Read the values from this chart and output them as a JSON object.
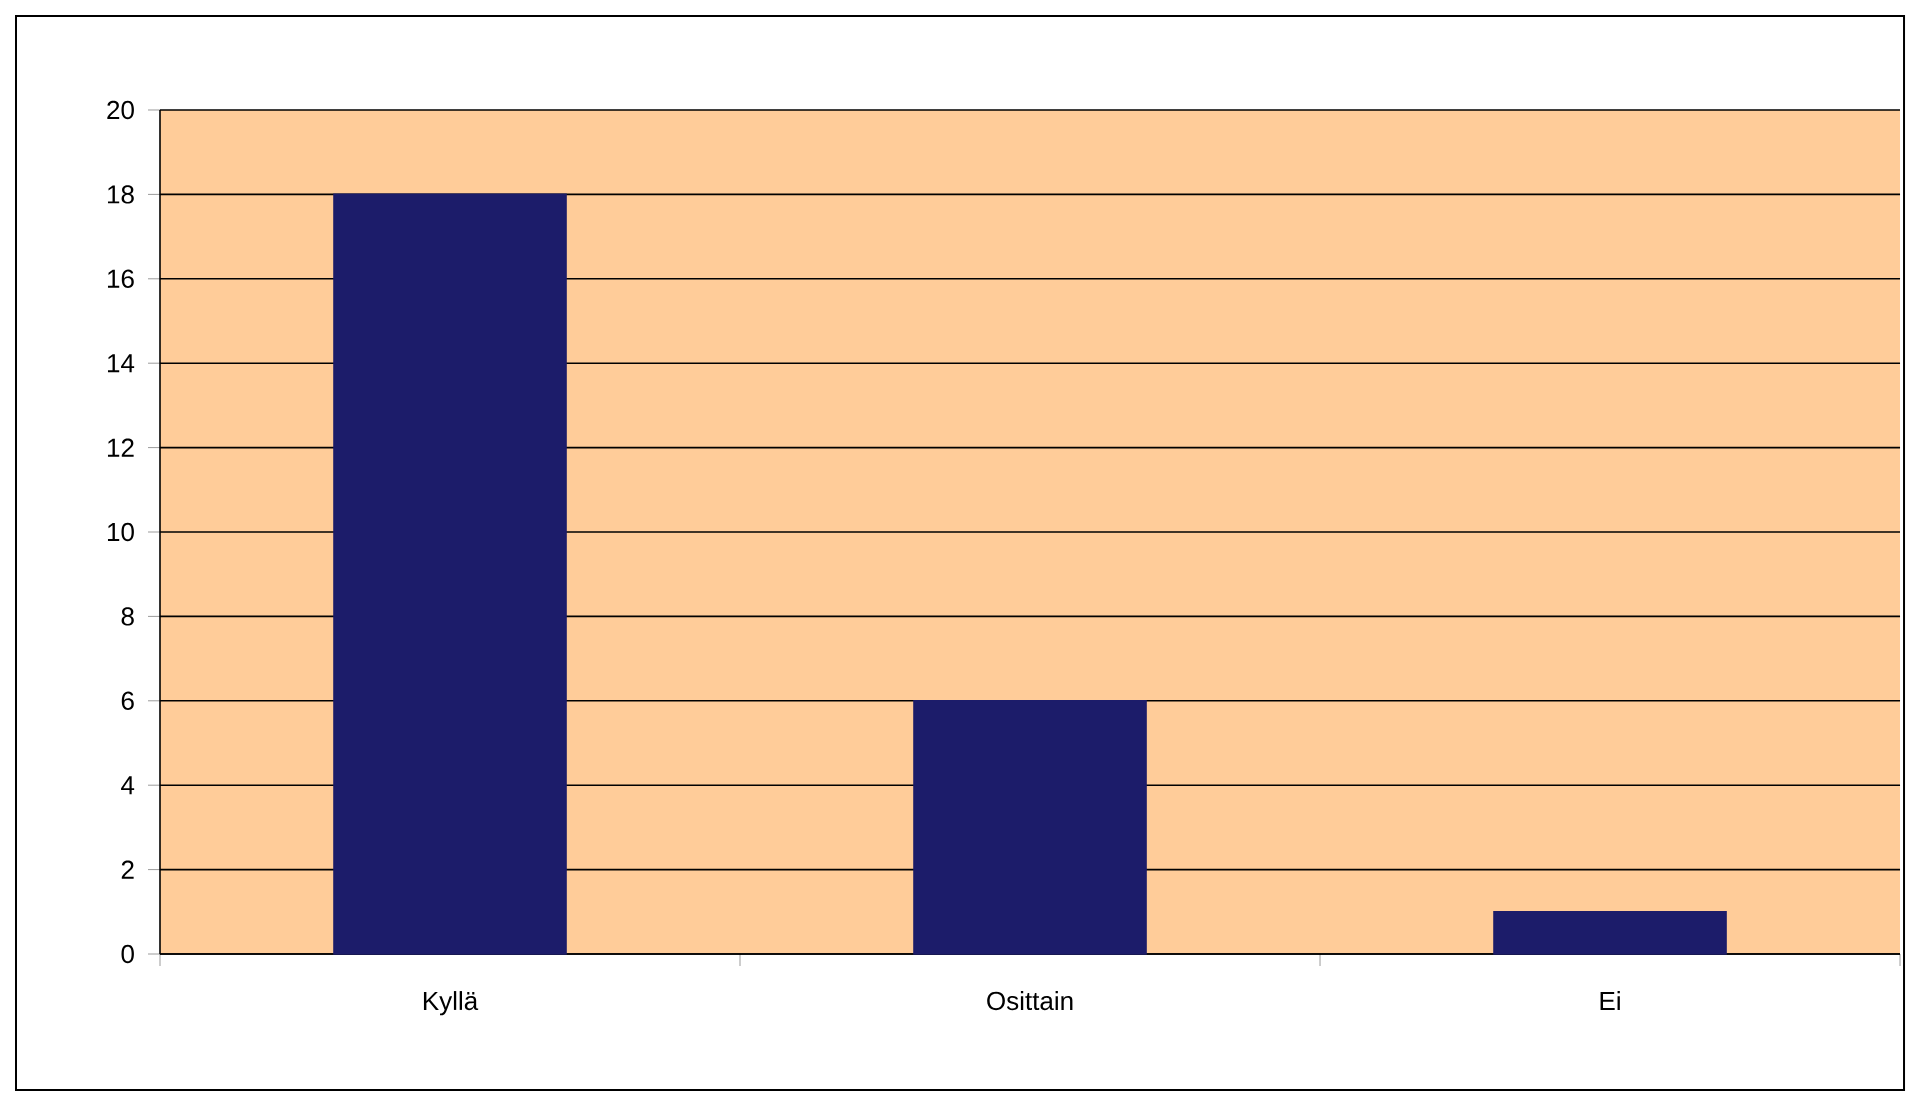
{
  "chart_data": {
    "type": "bar",
    "categories": [
      "Kyllä",
      "Osittain",
      "Ei"
    ],
    "values": [
      18,
      6,
      1
    ],
    "color": "#1c1c6a",
    "ylim": [
      0,
      20
    ],
    "yticks": [
      0,
      2,
      4,
      6,
      8,
      10,
      12,
      14,
      16,
      18,
      20
    ],
    "grid": "y"
  }
}
